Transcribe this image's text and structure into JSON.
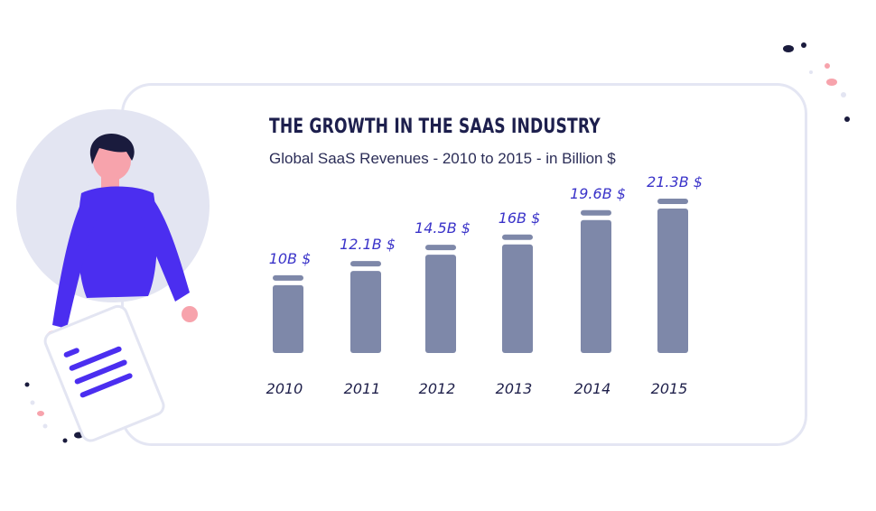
{
  "chart_data": {
    "type": "bar",
    "title": "THE GROWTH IN THE SAAS INDUSTRY",
    "subtitle": "Global SaaS Revenues - 2010 to 2015 - in Billion $",
    "categories": [
      "2010",
      "2011",
      "2012",
      "2013",
      "2014",
      "2015"
    ],
    "values": [
      10,
      12.1,
      14.5,
      16,
      19.6,
      21.3
    ],
    "data_labels": [
      "10B $",
      "12.1B $",
      "14.5B $",
      "16B $",
      "19.6B $",
      "21.3B $"
    ],
    "xlabel": "",
    "ylabel": "",
    "ylim": [
      0,
      22
    ],
    "grid": false
  },
  "colors": {
    "bar": "#7e88a9",
    "label": "#3a33c9",
    "title": "#1d1f4d",
    "card_border": "#e4e6f3",
    "person_shirt": "#4b2ef0",
    "skin": "#f7a3ac",
    "hair": "#1a1b3d",
    "circle": "#e3e5f2"
  },
  "icons": {
    "illustration": "person-holding-document-icon"
  }
}
